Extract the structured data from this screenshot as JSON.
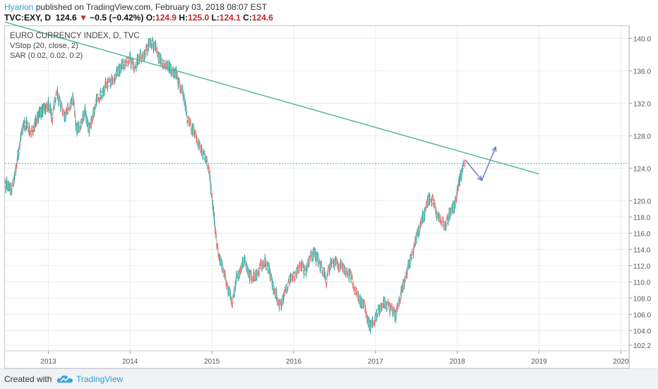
{
  "header": {
    "author": "Hyarion",
    "published": "published on TradingView.com, February 03, 2018 08:07 EST",
    "symbol": "TVC:EXY, D",
    "last": "124.6",
    "change_arrow": "▼",
    "change": "−0.5 (−0.42%)",
    "o_label": "O:",
    "o_value": "124.9",
    "h_label": "H:",
    "h_value": "125.0",
    "l_label": "L:",
    "l_value": "124.1",
    "c_label": "C:",
    "c_value": "124.6"
  },
  "legend": {
    "title": "EURO CURRENCY INDEX, D, TVC",
    "ind1": "VStop (20, close, 2)",
    "ind2": "SAR (0.02, 0.02, 0.2)"
  },
  "footer": {
    "created_with": "Created with",
    "brand": "TradingView"
  },
  "colors": {
    "up": "#26a69a",
    "down": "#ef5350",
    "trendline": "#3cb38a",
    "hline": "#26c6da",
    "arrow": "#6f7fc1",
    "grid": "#e9edf2",
    "vstop": "#555555"
  },
  "chart_data": {
    "type": "line",
    "title": "EURO CURRENCY INDEX, D, TVC",
    "xlabel": "",
    "ylabel": "",
    "xlim": [
      2012.47,
      2020.1
    ],
    "ylim": [
      101.5,
      141.5
    ],
    "x_ticks": [
      "2013",
      "2014",
      "2015",
      "2016",
      "2017",
      "2018",
      "2019",
      "2020"
    ],
    "y_ticks": [
      "140.0",
      "136.0",
      "132.0",
      "128.0",
      "124.0",
      "120.0",
      "118.0",
      "116.0",
      "114.0",
      "112.0",
      "110.0",
      "108.0",
      "106.0",
      "104.0",
      "102.2"
    ],
    "y_tick_values": [
      140.0,
      136.0,
      132.0,
      128.0,
      124.0,
      120.0,
      118.0,
      116.0,
      114.0,
      112.0,
      110.0,
      108.0,
      106.0,
      104.0,
      102.2
    ],
    "series": [
      {
        "x": [
          2012.47,
          2012.55,
          2012.6,
          2012.65,
          2012.7,
          2012.8,
          2012.9,
          2013.0,
          2013.05,
          2013.1,
          2013.15,
          2013.2,
          2013.25,
          2013.3,
          2013.35,
          2013.4,
          2013.45,
          2013.5,
          2013.55,
          2013.6,
          2013.65,
          2013.7,
          2013.75,
          2013.8,
          2013.85,
          2013.9,
          2013.95,
          2014.0,
          2014.05,
          2014.1,
          2014.15,
          2014.2,
          2014.25,
          2014.3,
          2014.35,
          2014.4,
          2014.45,
          2014.5,
          2014.55,
          2014.6,
          2014.65,
          2014.7,
          2014.75,
          2014.8,
          2014.85,
          2014.9,
          2014.95,
          2015.0,
          2015.03,
          2015.06,
          2015.1,
          2015.15,
          2015.2,
          2015.25,
          2015.3,
          2015.35,
          2015.4,
          2015.45,
          2015.5,
          2015.55,
          2015.6,
          2015.65,
          2015.7,
          2015.75,
          2015.8,
          2015.85,
          2015.9,
          2015.95,
          2016.0,
          2016.05,
          2016.1,
          2016.15,
          2016.2,
          2016.25,
          2016.3,
          2016.35,
          2016.4,
          2016.45,
          2016.5,
          2016.55,
          2016.6,
          2016.65,
          2016.7,
          2016.75,
          2016.8,
          2016.85,
          2016.9,
          2016.95,
          2017.0,
          2017.05,
          2017.1,
          2017.15,
          2017.2,
          2017.25,
          2017.3,
          2017.35,
          2017.4,
          2017.45,
          2017.5,
          2017.55,
          2017.6,
          2017.65,
          2017.7,
          2017.75,
          2017.8,
          2017.85,
          2017.9,
          2017.95,
          2018.0,
          2018.04,
          2018.09
        ],
        "values": [
          122.0,
          121.5,
          123.5,
          126.8,
          129.5,
          128.5,
          130.8,
          131.8,
          130.2,
          133.5,
          132.0,
          130.5,
          131.5,
          132.8,
          128.5,
          129.5,
          131.0,
          129.0,
          130.8,
          132.5,
          133.0,
          134.2,
          134.5,
          135.0,
          135.8,
          136.5,
          137.0,
          137.5,
          136.2,
          137.5,
          138.0,
          138.5,
          139.5,
          139.0,
          137.8,
          136.5,
          137.0,
          136.2,
          135.8,
          134.5,
          133.0,
          130.0,
          129.0,
          128.0,
          126.5,
          125.5,
          124.5,
          121.0,
          117.5,
          114.5,
          112.5,
          111.0,
          109.0,
          107.5,
          110.5,
          111.5,
          112.8,
          111.0,
          110.5,
          110.8,
          112.0,
          112.5,
          111.5,
          109.5,
          108.0,
          106.8,
          109.0,
          110.0,
          110.5,
          111.5,
          112.0,
          111.0,
          113.0,
          113.5,
          112.8,
          111.5,
          110.0,
          112.5,
          112.5,
          112.0,
          111.8,
          111.3,
          110.8,
          109.0,
          107.8,
          107.5,
          105.5,
          104.5,
          105.5,
          106.8,
          107.5,
          107.0,
          106.5,
          106.0,
          108.0,
          110.0,
          112.0,
          113.5,
          115.5,
          117.0,
          118.5,
          120.5,
          120.0,
          118.5,
          117.5,
          117.0,
          118.0,
          119.0,
          121.0,
          123.0,
          124.6
        ]
      }
    ],
    "trendline": {
      "x": [
        2012.47,
        2019.0
      ],
      "y": [
        142.0,
        123.3
      ]
    },
    "horizontal_line": 124.6,
    "projection_arrows": [
      {
        "x": [
          2018.1,
          2018.3
        ],
        "y": [
          125.0,
          122.5
        ]
      },
      {
        "x": [
          2018.3,
          2018.47
        ],
        "y": [
          122.5,
          126.6
        ]
      }
    ],
    "grid": true
  }
}
